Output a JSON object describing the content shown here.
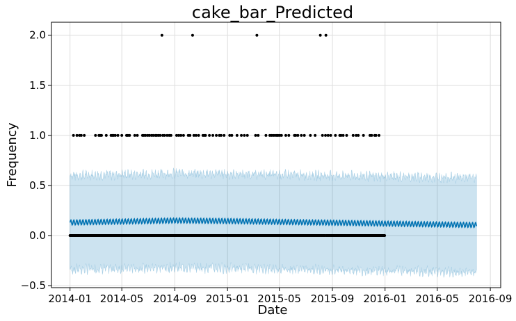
{
  "chart_data": {
    "type": "scatter",
    "title": "cake_bar_Predicted",
    "xlabel": "Date",
    "ylabel": "Frequency",
    "xlim": [
      "2013-11-19",
      "2016-09-25"
    ],
    "ylim": [
      -0.52,
      2.13
    ],
    "grid": true,
    "colors": {
      "points": "#000000",
      "forecast": "#0072B2",
      "interval": "#0072B2"
    },
    "x_ticks": [
      "2014-01",
      "2014-05",
      "2014-09",
      "2015-01",
      "2015-05",
      "2015-09",
      "2016-01",
      "2016-05",
      "2016-09"
    ],
    "y_ticks": [
      "−0.5",
      "0.0",
      "0.5",
      "1.0",
      "1.5",
      "2.0"
    ],
    "y_tick_values": [
      -0.5,
      0.0,
      0.5,
      1.0,
      1.5,
      2.0
    ],
    "observed": {
      "start": "2014-01-01",
      "end": "2015-12-31",
      "baseline_value": 0,
      "ones": [
        "2014-01-09",
        "2014-01-17",
        "2014-01-23",
        "2014-01-27",
        "2014-02-03",
        "2014-03-01",
        "2014-03-09",
        "2014-03-12",
        "2014-03-15",
        "2014-03-26",
        "2014-04-06",
        "2014-04-09",
        "2014-04-12",
        "2014-04-16",
        "2014-04-22",
        "2014-05-01",
        "2014-05-12",
        "2014-05-15",
        "2014-05-19",
        "2014-05-31",
        "2014-06-06",
        "2014-06-18",
        "2014-06-21",
        "2014-06-25",
        "2014-06-30",
        "2014-07-04",
        "2014-07-09",
        "2014-07-13",
        "2014-07-18",
        "2014-07-21",
        "2014-07-25",
        "2014-07-29",
        "2014-08-04",
        "2014-08-08",
        "2014-08-14",
        "2014-08-19",
        "2014-08-23",
        "2014-09-05",
        "2014-09-10",
        "2014-09-15",
        "2014-09-21",
        "2014-10-02",
        "2014-10-06",
        "2014-10-15",
        "2014-10-20",
        "2014-10-26",
        "2014-11-05",
        "2014-11-08",
        "2014-11-11",
        "2014-11-20",
        "2014-11-28",
        "2014-12-06",
        "2014-12-13",
        "2014-12-17",
        "2014-12-24",
        "2015-01-06",
        "2015-01-11",
        "2015-01-23",
        "2015-02-02",
        "2015-02-09",
        "2015-02-16",
        "2015-03-07",
        "2015-03-13",
        "2015-03-31",
        "2015-04-09",
        "2015-04-13",
        "2015-04-17",
        "2015-04-21",
        "2015-04-25",
        "2015-04-28",
        "2015-05-02",
        "2015-05-06",
        "2015-05-16",
        "2015-05-23",
        "2015-06-05",
        "2015-06-08",
        "2015-06-13",
        "2015-06-21",
        "2015-06-28",
        "2015-07-12",
        "2015-07-23",
        "2015-08-09",
        "2015-08-16",
        "2015-08-22",
        "2015-08-28",
        "2015-09-08",
        "2015-09-18",
        "2015-09-21",
        "2015-09-26",
        "2015-10-04",
        "2015-10-19",
        "2015-10-26",
        "2015-10-31",
        "2015-11-12",
        "2015-11-27",
        "2015-12-01",
        "2015-12-08",
        "2015-12-11",
        "2015-12-18"
      ],
      "twos": [
        "2014-08-02",
        "2014-10-12",
        "2015-03-10",
        "2015-08-04",
        "2015-08-17"
      ]
    },
    "forecast": {
      "start": "2014-01-01",
      "end": "2016-07-31",
      "trend": [
        {
          "x": "2014-01-01",
          "y": 0.13
        },
        {
          "x": "2014-09-01",
          "y": 0.15
        },
        {
          "x": "2015-01-01",
          "y": 0.145
        },
        {
          "x": "2016-07-31",
          "y": 0.105
        }
      ],
      "weekly_amplitude": 0.025,
      "interval_half_width": 0.47,
      "interval_noise": 0.035
    }
  }
}
